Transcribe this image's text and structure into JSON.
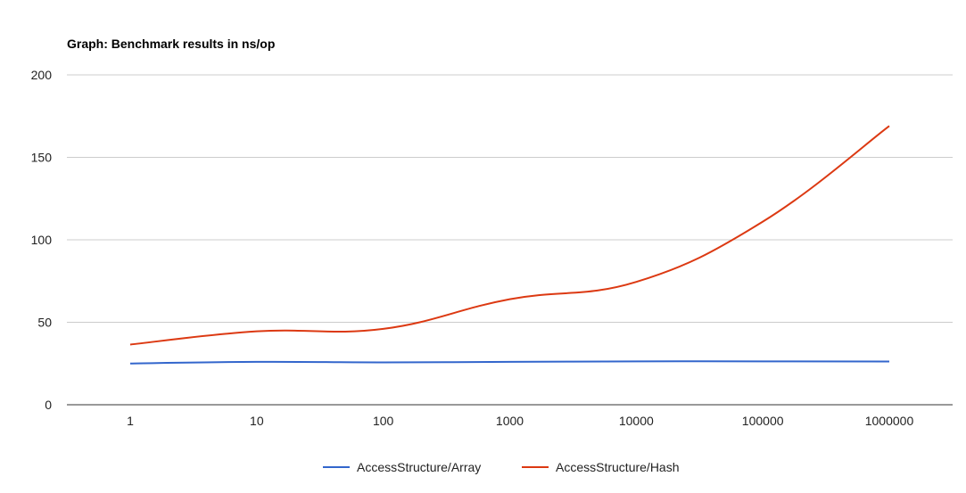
{
  "chart_data": {
    "type": "line",
    "title": "Graph: Benchmark results in ns/op",
    "xlabel": "",
    "ylabel": "",
    "categories": [
      "1",
      "10",
      "100",
      "1000",
      "10000",
      "100000",
      "1000000"
    ],
    "y_ticks": [
      "0",
      "50",
      "100",
      "150",
      "200"
    ],
    "ylim": [
      0,
      200
    ],
    "grid": true,
    "legend_position": "bottom",
    "series": [
      {
        "name": "AccessStructure/Array",
        "color": "#3366cc",
        "values": [
          25,
          26,
          25.7,
          26,
          26.3,
          26.3,
          26.2
        ]
      },
      {
        "name": "AccessStructure/Hash",
        "color": "#dc3912",
        "values": [
          36.5,
          44.5,
          46,
          64,
          74.5,
          111,
          169
        ]
      }
    ]
  }
}
